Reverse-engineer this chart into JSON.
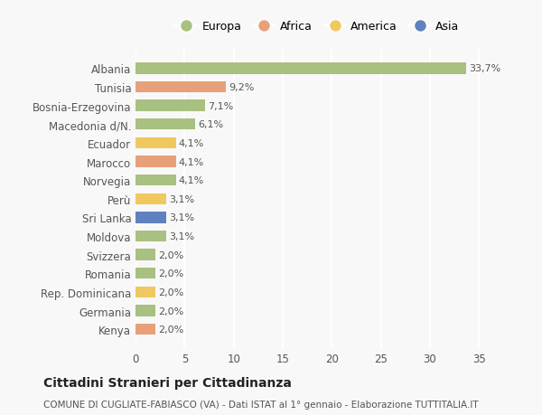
{
  "categories": [
    "Kenya",
    "Germania",
    "Rep. Dominicana",
    "Romania",
    "Svizzera",
    "Moldova",
    "Sri Lanka",
    "Perù",
    "Norvegia",
    "Marocco",
    "Ecuador",
    "Macedonia d/N.",
    "Bosnia-Erzegovina",
    "Tunisia",
    "Albania"
  ],
  "values": [
    2.0,
    2.0,
    2.0,
    2.0,
    2.0,
    3.1,
    3.1,
    3.1,
    4.1,
    4.1,
    4.1,
    6.1,
    7.1,
    9.2,
    33.7
  ],
  "labels": [
    "2,0%",
    "2,0%",
    "2,0%",
    "2,0%",
    "2,0%",
    "3,1%",
    "3,1%",
    "3,1%",
    "4,1%",
    "4,1%",
    "4,1%",
    "6,1%",
    "7,1%",
    "9,2%",
    "33,7%"
  ],
  "colors": [
    "#e8a07a",
    "#a8c080",
    "#f0c860",
    "#a8c080",
    "#a8c080",
    "#a8c080",
    "#6080c0",
    "#f0c860",
    "#a8c080",
    "#e8a07a",
    "#f0c860",
    "#a8c080",
    "#a8c080",
    "#e8a07a",
    "#a8c080"
  ],
  "legend": [
    {
      "label": "Europa",
      "color": "#a8c080"
    },
    {
      "label": "Africa",
      "color": "#e8a07a"
    },
    {
      "label": "America",
      "color": "#f0c860"
    },
    {
      "label": "Asia",
      "color": "#6080c0"
    }
  ],
  "title": "Cittadini Stranieri per Cittadinanza",
  "subtitle": "COMUNE DI CUGLIATE-FABIASCO (VA) - Dati ISTAT al 1° gennaio - Elaborazione TUTTITALIA.IT",
  "xlim": [
    0,
    37
  ],
  "xticks": [
    0,
    5,
    10,
    15,
    20,
    25,
    30,
    35
  ],
  "background_color": "#f8f8f8",
  "grid_color": "#ffffff",
  "bar_height": 0.6
}
